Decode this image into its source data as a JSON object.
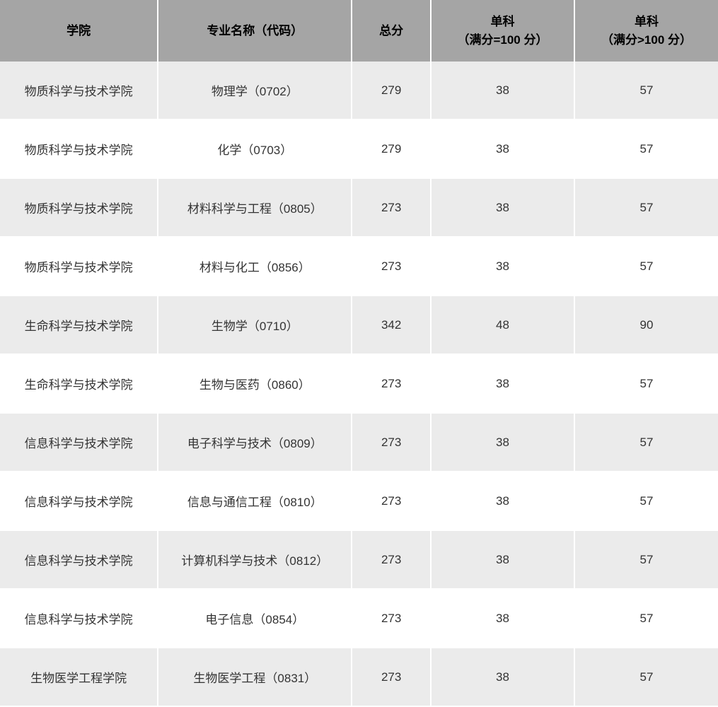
{
  "table": {
    "headers": {
      "school": "学院",
      "major": "专业名称（代码）",
      "total": "总分",
      "sub1_line1": "单科",
      "sub1_line2": "（满分=100 分）",
      "sub2_line1": "单科",
      "sub2_line2": "（满分>100 分）"
    },
    "rows": [
      {
        "school": "物质科学与技术学院",
        "major": "物理学（0702）",
        "total": "279",
        "sub1": "38",
        "sub2": "57"
      },
      {
        "school": "物质科学与技术学院",
        "major": "化学（0703）",
        "total": "279",
        "sub1": "38",
        "sub2": "57"
      },
      {
        "school": "物质科学与技术学院",
        "major": "材料科学与工程（0805）",
        "total": "273",
        "sub1": "38",
        "sub2": "57"
      },
      {
        "school": "物质科学与技术学院",
        "major": "材料与化工（0856）",
        "total": "273",
        "sub1": "38",
        "sub2": "57"
      },
      {
        "school": "生命科学与技术学院",
        "major": "生物学（0710）",
        "total": "342",
        "sub1": "48",
        "sub2": "90"
      },
      {
        "school": "生命科学与技术学院",
        "major": "生物与医药（0860）",
        "total": "273",
        "sub1": "38",
        "sub2": "57"
      },
      {
        "school": "信息科学与技术学院",
        "major": "电子科学与技术（0809）",
        "total": "273",
        "sub1": "38",
        "sub2": "57"
      },
      {
        "school": "信息科学与技术学院",
        "major": "信息与通信工程（0810）",
        "total": "273",
        "sub1": "38",
        "sub2": "57"
      },
      {
        "school": "信息科学与技术学院",
        "major": "计算机科学与技术（0812）",
        "total": "273",
        "sub1": "38",
        "sub2": "57"
      },
      {
        "school": "信息科学与技术学院",
        "major": "电子信息（0854）",
        "total": "273",
        "sub1": "38",
        "sub2": "57"
      },
      {
        "school": "生物医学工程学院",
        "major": "生物医学工程（0831）",
        "total": "273",
        "sub1": "38",
        "sub2": "57"
      }
    ]
  },
  "styling": {
    "header_bg": "#a5a5a5",
    "row_odd_bg": "#ebebeb",
    "row_even_bg": "#ffffff",
    "border_color": "#ffffff",
    "text_color": "#333333",
    "header_text_color": "#000000",
    "font_size": 17,
    "col_widths": {
      "school": "22%",
      "major": "27%",
      "total": "11%",
      "sub1": "20%",
      "sub2": "20%"
    }
  }
}
